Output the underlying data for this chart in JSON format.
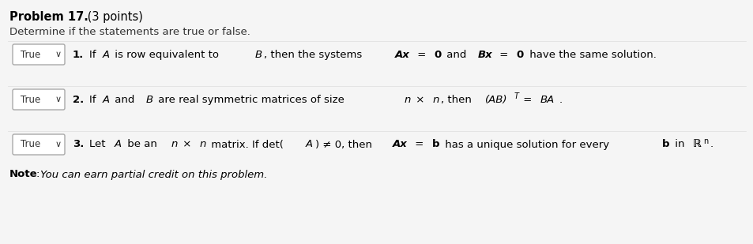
{
  "bg_color": "#f5f5f5",
  "title": "Problem 17.",
  "title_points": "(3 points)",
  "subtitle": "Determine if the statements are true or false.",
  "box_color": "#ffffff",
  "box_edge_color": "#cccccc",
  "dropdown_label": "True",
  "dropdown_arrow": "∨",
  "statements": [
    {
      "number": "1.",
      "text_parts": [
        {
          "text": "If ",
          "style": "normal"
        },
        {
          "text": "A",
          "style": "italic"
        },
        {
          "text": " is row equivalent to ",
          "style": "normal"
        },
        {
          "text": "B",
          "style": "italic"
        },
        {
          "text": ", then the systems ",
          "style": "normal"
        },
        {
          "text": "Ax",
          "style": "bold_italic"
        },
        {
          "text": " = ",
          "style": "normal"
        },
        {
          "text": "0",
          "style": "bold"
        },
        {
          "text": " and ",
          "style": "normal"
        },
        {
          "text": "Bx",
          "style": "bold_italic"
        },
        {
          "text": " = ",
          "style": "normal"
        },
        {
          "text": "0",
          "style": "bold"
        },
        {
          "text": " have the same solution.",
          "style": "normal"
        }
      ]
    },
    {
      "number": "2.",
      "text_parts": [
        {
          "text": "If ",
          "style": "normal"
        },
        {
          "text": "A",
          "style": "italic"
        },
        {
          "text": " and ",
          "style": "normal"
        },
        {
          "text": "B",
          "style": "italic"
        },
        {
          "text": " are real symmetric matrices of size ",
          "style": "normal"
        },
        {
          "text": "n",
          "style": "italic"
        },
        {
          "text": " × ",
          "style": "normal"
        },
        {
          "text": "n",
          "style": "italic"
        },
        {
          "text": ", then ",
          "style": "normal"
        },
        {
          "text": "(AB)",
          "style": "italic"
        },
        {
          "text": "T",
          "style": "superscript_italic"
        },
        {
          "text": " = ",
          "style": "normal"
        },
        {
          "text": "BA",
          "style": "italic"
        },
        {
          "text": ".",
          "style": "normal"
        }
      ]
    },
    {
      "number": "3.",
      "text_parts": [
        {
          "text": "Let ",
          "style": "normal"
        },
        {
          "text": "A",
          "style": "italic"
        },
        {
          "text": " be an ",
          "style": "normal"
        },
        {
          "text": "n",
          "style": "italic"
        },
        {
          "text": " × ",
          "style": "normal"
        },
        {
          "text": "n",
          "style": "italic"
        },
        {
          "text": " matrix. If det(",
          "style": "normal"
        },
        {
          "text": "A",
          "style": "italic"
        },
        {
          "text": ") ≠ 0, then ",
          "style": "normal"
        },
        {
          "text": "Ax",
          "style": "bold_italic"
        },
        {
          "text": " = ",
          "style": "normal"
        },
        {
          "text": "b",
          "style": "bold"
        },
        {
          "text": " has a unique solution for every ",
          "style": "normal"
        },
        {
          "text": "b",
          "style": "bold"
        },
        {
          "text": " in ",
          "style": "normal"
        },
        {
          "text": "R",
          "style": "blackboard"
        },
        {
          "text": "n",
          "style": "superscript_normal"
        },
        {
          "text": ".",
          "style": "normal"
        }
      ]
    }
  ],
  "note_label": "Note",
  "note_text": ": You can earn partial credit on this problem.",
  "text_color": "#333333",
  "link_color": "#0000cc"
}
